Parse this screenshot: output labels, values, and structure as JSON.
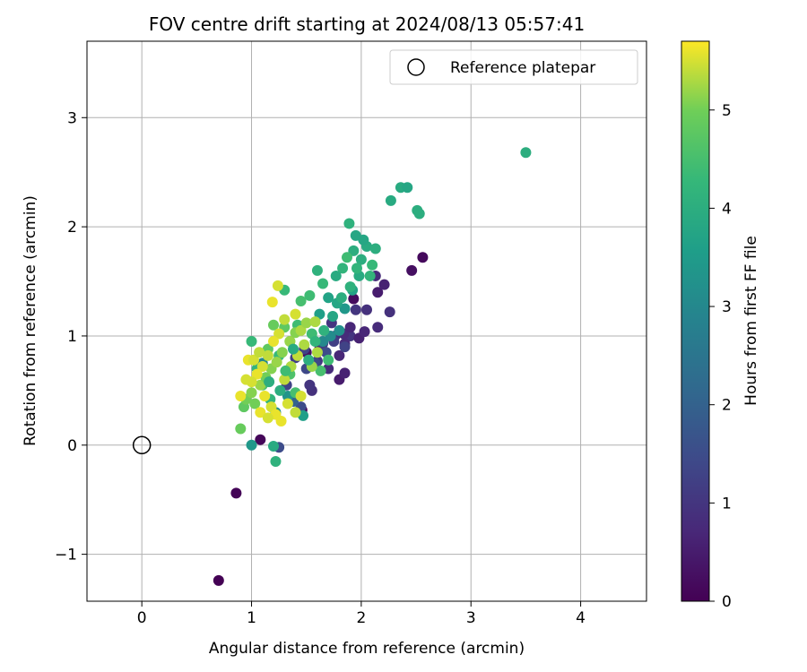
{
  "chart_data": {
    "type": "scatter",
    "title": "FOV centre drift starting at 2024/08/13 05:57:41",
    "xlabel": "Angular distance from reference (arcmin)",
    "ylabel": "Rotation from reference (arcmin)",
    "xlim": [
      -0.5,
      4.6
    ],
    "ylim": [
      -1.43,
      3.7
    ],
    "xticks": [
      0,
      1,
      2,
      3,
      4
    ],
    "xtick_labels": [
      "0",
      "1",
      "2",
      "3",
      "4"
    ],
    "yticks": [
      -1,
      0,
      1,
      2,
      3
    ],
    "ytick_labels": [
      "−1",
      "0",
      "1",
      "2",
      "3"
    ],
    "grid": true,
    "legend": {
      "position": "top-right",
      "entries": [
        "Reference platepar"
      ]
    },
    "reference_point": {
      "x": 0,
      "y": 0,
      "label": "Reference platepar"
    },
    "colorbar": {
      "label": "Hours from first FF file",
      "colormap": "viridis",
      "range": [
        0,
        5.7
      ],
      "ticks": [
        0,
        1,
        2,
        3,
        4,
        5
      ],
      "tick_labels": [
        "0",
        "1",
        "2",
        "3",
        "4",
        "5"
      ]
    },
    "series": [
      {
        "points": [
          {
            "x": 0.7,
            "y": -1.24,
            "c": 0.0
          },
          {
            "x": 0.86,
            "y": -0.44,
            "c": 0.05
          },
          {
            "x": 1.08,
            "y": 0.05,
            "c": 0.1
          },
          {
            "x": 1.46,
            "y": 0.32,
            "c": 0.1
          },
          {
            "x": 2.56,
            "y": 1.72,
            "c": 0.15
          },
          {
            "x": 2.46,
            "y": 1.6,
            "c": 0.25
          },
          {
            "x": 1.93,
            "y": 1.34,
            "c": 0.2
          },
          {
            "x": 1.8,
            "y": 0.6,
            "c": 0.5
          },
          {
            "x": 1.85,
            "y": 0.66,
            "c": 0.6
          },
          {
            "x": 1.5,
            "y": 0.85,
            "c": 0.3
          },
          {
            "x": 1.62,
            "y": 0.88,
            "c": 0.3
          },
          {
            "x": 2.26,
            "y": 1.22,
            "c": 0.9
          },
          {
            "x": 2.15,
            "y": 1.08,
            "c": 0.8
          },
          {
            "x": 2.05,
            "y": 1.24,
            "c": 0.9
          },
          {
            "x": 2.15,
            "y": 1.4,
            "c": 0.5
          },
          {
            "x": 2.21,
            "y": 1.47,
            "c": 0.6
          },
          {
            "x": 2.13,
            "y": 1.55,
            "c": 0.8
          },
          {
            "x": 1.95,
            "y": 1.24,
            "c": 1.0
          },
          {
            "x": 1.9,
            "y": 1.0,
            "c": 1.0
          },
          {
            "x": 1.84,
            "y": 1.02,
            "c": 0.8
          },
          {
            "x": 1.76,
            "y": 1.0,
            "c": 0.9
          },
          {
            "x": 1.8,
            "y": 0.82,
            "c": 0.7
          },
          {
            "x": 1.7,
            "y": 0.7,
            "c": 0.8
          },
          {
            "x": 1.55,
            "y": 0.5,
            "c": 0.9
          },
          {
            "x": 1.53,
            "y": 0.55,
            "c": 1.0
          },
          {
            "x": 1.6,
            "y": 0.77,
            "c": 1.0
          },
          {
            "x": 1.65,
            "y": 0.93,
            "c": 1.1
          },
          {
            "x": 1.73,
            "y": 1.12,
            "c": 1.0
          },
          {
            "x": 1.85,
            "y": 0.93,
            "c": 0.8
          },
          {
            "x": 1.98,
            "y": 0.98,
            "c": 0.6
          },
          {
            "x": 2.03,
            "y": 1.04,
            "c": 0.7
          },
          {
            "x": 1.9,
            "y": 1.08,
            "c": 0.7
          },
          {
            "x": 1.4,
            "y": 0.8,
            "c": 1.2
          },
          {
            "x": 1.32,
            "y": 0.55,
            "c": 1.3
          },
          {
            "x": 1.45,
            "y": 0.35,
            "c": 1.5
          },
          {
            "x": 1.25,
            "y": -0.02,
            "c": 1.5
          },
          {
            "x": 1.5,
            "y": 0.7,
            "c": 1.4
          },
          {
            "x": 1.58,
            "y": 0.75,
            "c": 1.4
          },
          {
            "x": 1.48,
            "y": 0.88,
            "c": 1.3
          },
          {
            "x": 1.68,
            "y": 0.85,
            "c": 1.5
          },
          {
            "x": 1.75,
            "y": 0.95,
            "c": 1.2
          },
          {
            "x": 1.85,
            "y": 0.9,
            "c": 1.3
          },
          {
            "x": 1.38,
            "y": 0.4,
            "c": 2.0
          },
          {
            "x": 1.1,
            "y": 0.75,
            "c": 3.0
          },
          {
            "x": 1.0,
            "y": 0.0,
            "c": 3.4
          },
          {
            "x": 1.47,
            "y": 0.27,
            "c": 3.6
          },
          {
            "x": 1.22,
            "y": 0.3,
            "c": 3.2
          },
          {
            "x": 1.33,
            "y": 0.45,
            "c": 3.3
          },
          {
            "x": 1.65,
            "y": 0.95,
            "c": 3.0
          },
          {
            "x": 1.72,
            "y": 1.0,
            "c": 3.1
          },
          {
            "x": 1.8,
            "y": 1.05,
            "c": 3.2
          },
          {
            "x": 1.85,
            "y": 1.25,
            "c": 3.4
          },
          {
            "x": 1.62,
            "y": 1.2,
            "c": 3.6
          },
          {
            "x": 1.7,
            "y": 1.35,
            "c": 3.7
          },
          {
            "x": 1.78,
            "y": 1.3,
            "c": 3.8
          },
          {
            "x": 1.92,
            "y": 1.42,
            "c": 3.7
          },
          {
            "x": 1.98,
            "y": 1.55,
            "c": 3.9
          },
          {
            "x": 2.0,
            "y": 1.7,
            "c": 4.0
          },
          {
            "x": 2.05,
            "y": 1.82,
            "c": 3.9
          },
          {
            "x": 1.95,
            "y": 1.92,
            "c": 3.8
          },
          {
            "x": 2.02,
            "y": 1.88,
            "c": 3.8
          },
          {
            "x": 1.89,
            "y": 2.03,
            "c": 4.1
          },
          {
            "x": 1.93,
            "y": 1.78,
            "c": 4.0
          },
          {
            "x": 1.83,
            "y": 1.62,
            "c": 4.2
          },
          {
            "x": 1.77,
            "y": 1.55,
            "c": 3.9
          },
          {
            "x": 2.13,
            "y": 1.8,
            "c": 4.0
          },
          {
            "x": 2.1,
            "y": 1.65,
            "c": 4.3
          },
          {
            "x": 2.08,
            "y": 1.55,
            "c": 4.2
          },
          {
            "x": 2.27,
            "y": 2.24,
            "c": 3.9
          },
          {
            "x": 2.36,
            "y": 2.36,
            "c": 3.9
          },
          {
            "x": 2.42,
            "y": 2.36,
            "c": 3.8
          },
          {
            "x": 2.51,
            "y": 2.15,
            "c": 4.0
          },
          {
            "x": 2.53,
            "y": 2.12,
            "c": 4.0
          },
          {
            "x": 3.5,
            "y": 2.68,
            "c": 4.0
          },
          {
            "x": 1.6,
            "y": 1.6,
            "c": 4.1
          },
          {
            "x": 1.65,
            "y": 1.48,
            "c": 4.3
          },
          {
            "x": 1.53,
            "y": 1.37,
            "c": 4.4
          },
          {
            "x": 1.45,
            "y": 1.32,
            "c": 4.5
          },
          {
            "x": 1.3,
            "y": 1.42,
            "c": 4.3
          },
          {
            "x": 1.2,
            "y": -0.01,
            "c": 3.9
          },
          {
            "x": 1.22,
            "y": -0.15,
            "c": 4.1
          },
          {
            "x": 1.17,
            "y": 0.42,
            "c": 4.2
          },
          {
            "x": 1.05,
            "y": 0.7,
            "c": 4.2
          },
          {
            "x": 1.0,
            "y": 0.95,
            "c": 4.3
          },
          {
            "x": 1.25,
            "y": 0.82,
            "c": 4.3
          },
          {
            "x": 1.35,
            "y": 0.65,
            "c": 4.6
          },
          {
            "x": 1.4,
            "y": 0.48,
            "c": 4.5
          },
          {
            "x": 1.55,
            "y": 1.02,
            "c": 4.4
          },
          {
            "x": 1.63,
            "y": 0.68,
            "c": 4.5
          },
          {
            "x": 1.7,
            "y": 0.78,
            "c": 4.4
          },
          {
            "x": 1.42,
            "y": 1.1,
            "c": 4.4
          },
          {
            "x": 1.35,
            "y": 0.95,
            "c": 4.7
          },
          {
            "x": 1.3,
            "y": 1.08,
            "c": 4.8
          },
          {
            "x": 1.2,
            "y": 1.1,
            "c": 4.9
          },
          {
            "x": 1.15,
            "y": 0.88,
            "c": 4.8
          },
          {
            "x": 1.1,
            "y": 0.55,
            "c": 4.6
          },
          {
            "x": 0.9,
            "y": 0.15,
            "c": 4.9
          },
          {
            "x": 0.93,
            "y": 0.35,
            "c": 4.8
          },
          {
            "x": 0.95,
            "y": 0.42,
            "c": 5.0
          },
          {
            "x": 1.0,
            "y": 0.48,
            "c": 5.1
          },
          {
            "x": 1.03,
            "y": 0.38,
            "c": 5.0
          },
          {
            "x": 1.08,
            "y": 0.55,
            "c": 5.2
          },
          {
            "x": 1.13,
            "y": 0.62,
            "c": 5.0
          },
          {
            "x": 1.18,
            "y": 0.7,
            "c": 5.1
          },
          {
            "x": 1.23,
            "y": 0.76,
            "c": 5.2
          },
          {
            "x": 1.28,
            "y": 0.85,
            "c": 5.1
          },
          {
            "x": 1.35,
            "y": 0.95,
            "c": 5.2
          },
          {
            "x": 1.4,
            "y": 1.03,
            "c": 5.1
          },
          {
            "x": 1.45,
            "y": 1.05,
            "c": 5.3
          },
          {
            "x": 1.5,
            "y": 1.12,
            "c": 5.2
          },
          {
            "x": 1.58,
            "y": 1.13,
            "c": 5.3
          },
          {
            "x": 1.4,
            "y": 1.2,
            "c": 5.5
          },
          {
            "x": 1.3,
            "y": 1.15,
            "c": 5.4
          },
          {
            "x": 1.25,
            "y": 1.02,
            "c": 5.5
          },
          {
            "x": 1.2,
            "y": 0.95,
            "c": 5.6
          },
          {
            "x": 1.15,
            "y": 0.82,
            "c": 5.4
          },
          {
            "x": 1.1,
            "y": 0.72,
            "c": 5.5
          },
          {
            "x": 1.05,
            "y": 0.65,
            "c": 5.6
          },
          {
            "x": 1.0,
            "y": 0.58,
            "c": 5.5
          },
          {
            "x": 0.97,
            "y": 0.78,
            "c": 5.6
          },
          {
            "x": 1.02,
            "y": 0.78,
            "c": 5.5
          },
          {
            "x": 1.07,
            "y": 0.85,
            "c": 5.4
          },
          {
            "x": 1.12,
            "y": 0.45,
            "c": 5.6
          },
          {
            "x": 1.18,
            "y": 0.35,
            "c": 5.5
          },
          {
            "x": 1.22,
            "y": 0.28,
            "c": 5.6
          },
          {
            "x": 1.27,
            "y": 0.22,
            "c": 5.6
          },
          {
            "x": 1.33,
            "y": 0.38,
            "c": 5.5
          },
          {
            "x": 1.4,
            "y": 0.3,
            "c": 5.4
          },
          {
            "x": 1.45,
            "y": 0.45,
            "c": 5.5
          },
          {
            "x": 0.9,
            "y": 0.45,
            "c": 5.6
          },
          {
            "x": 0.95,
            "y": 0.6,
            "c": 5.5
          },
          {
            "x": 1.08,
            "y": 0.3,
            "c": 5.6
          },
          {
            "x": 1.15,
            "y": 0.25,
            "c": 5.5
          },
          {
            "x": 1.19,
            "y": 1.31,
            "c": 5.6
          },
          {
            "x": 1.24,
            "y": 1.46,
            "c": 5.5
          },
          {
            "x": 1.3,
            "y": 0.6,
            "c": 5.4
          },
          {
            "x": 1.36,
            "y": 0.72,
            "c": 5.3
          },
          {
            "x": 1.42,
            "y": 0.82,
            "c": 5.4
          },
          {
            "x": 1.48,
            "y": 0.92,
            "c": 5.3
          },
          {
            "x": 1.55,
            "y": 0.72,
            "c": 5.2
          },
          {
            "x": 1.6,
            "y": 0.85,
            "c": 5.3
          },
          {
            "x": 1.16,
            "y": 0.58,
            "c": 4.0
          },
          {
            "x": 1.26,
            "y": 0.5,
            "c": 4.0
          },
          {
            "x": 1.31,
            "y": 0.68,
            "c": 4.4
          },
          {
            "x": 1.38,
            "y": 0.88,
            "c": 3.9
          },
          {
            "x": 1.52,
            "y": 0.78,
            "c": 4.0
          },
          {
            "x": 1.58,
            "y": 0.95,
            "c": 4.2
          },
          {
            "x": 1.66,
            "y": 1.05,
            "c": 4.1
          },
          {
            "x": 1.74,
            "y": 1.18,
            "c": 3.8
          },
          {
            "x": 1.82,
            "y": 1.35,
            "c": 4.0
          },
          {
            "x": 1.9,
            "y": 1.45,
            "c": 4.1
          },
          {
            "x": 1.96,
            "y": 1.62,
            "c": 4.2
          },
          {
            "x": 1.87,
            "y": 1.72,
            "c": 4.4
          }
        ]
      }
    ]
  }
}
